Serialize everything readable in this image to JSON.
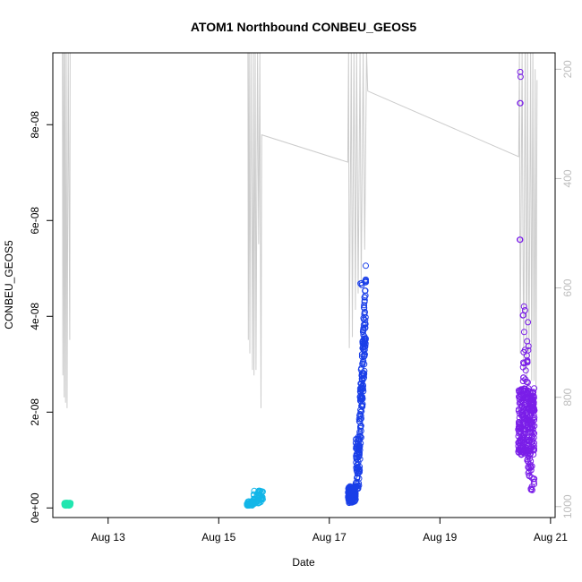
{
  "chart_data": {
    "type": "scatter",
    "title": "ATOM1 Northbound CONBEU_GEOS5",
    "xlabel": "Date",
    "ylabel": "CONBEU_GEOS5",
    "xlim": [
      "2016-08-12T00:00",
      "2016-08-21T02:00"
    ],
    "ylim": [
      -2e-09,
      9.5e-08
    ],
    "x_ticks": [
      {
        "value": "2016-08-13T00:00",
        "label": "Aug 13"
      },
      {
        "value": "2016-08-15T00:00",
        "label": "Aug 15"
      },
      {
        "value": "2016-08-17T00:00",
        "label": "Aug 17"
      },
      {
        "value": "2016-08-19T00:00",
        "label": "Aug 19"
      },
      {
        "value": "2016-08-21T00:00",
        "label": "Aug 21"
      }
    ],
    "y_ticks": [
      {
        "value": 0,
        "label": "0e+00"
      },
      {
        "value": 2e-08,
        "label": "2e-08"
      },
      {
        "value": 4e-08,
        "label": "4e-08"
      },
      {
        "value": 6e-08,
        "label": "6e-08"
      },
      {
        "value": 8e-08,
        "label": "8e-08"
      }
    ],
    "right_axis": {
      "color": "#bdbdbd",
      "reversed": true,
      "lim": [
        1020,
        170
      ],
      "ticks": [
        {
          "value": 200,
          "label": "200"
        },
        {
          "value": 400,
          "label": "400"
        },
        {
          "value": 600,
          "label": "600"
        },
        {
          "value": 800,
          "label": "800"
        },
        {
          "value": 1000,
          "label": "1000"
        }
      ]
    },
    "grid": false,
    "legend": "none",
    "series": [
      {
        "color": "#22e6b0",
        "segments": [
          {
            "start": "2016-08-12T05:00",
            "end": "2016-08-12T07:40",
            "count": 60,
            "y_min": 5e-10,
            "y_max": 1.1e-09,
            "drift": 0
          }
        ]
      },
      {
        "color": "#13b6e8",
        "segments": [
          {
            "start": "2016-08-15T12:10",
            "end": "2016-08-15T15:00",
            "count": 45,
            "y_min": 5e-10,
            "y_max": 1.4e-09,
            "drift": 0
          },
          {
            "start": "2016-08-15T15:00",
            "end": "2016-08-15T19:10",
            "count": 45,
            "y_min": 8e-10,
            "y_max": 3.6e-09,
            "drift": 0
          }
        ]
      },
      {
        "color": "#1a3fe8",
        "segments": [
          {
            "start": "2016-08-17T08:10",
            "end": "2016-08-17T11:30",
            "count": 130,
            "y_min": 1e-09,
            "y_max": 4.5e-09,
            "drift": 0
          },
          {
            "start": "2016-08-17T11:30",
            "end": "2016-08-17T12:50",
            "count": 50,
            "y_min": 4e-09,
            "y_max": 1.5e-08,
            "drift": 0
          },
          {
            "start": "2016-08-17T12:50",
            "end": "2016-08-17T15:50",
            "count": 170,
            "y_min": 1.2e-08,
            "y_max": 4.3e-08,
            "drift": 1
          },
          {
            "start": "2016-08-17T13:30",
            "end": "2016-08-17T14:10",
            "count": 3,
            "y_min": 4.6e-08,
            "y_max": 4.8e-08,
            "drift": 0
          }
        ]
      },
      {
        "color": "#7a1ee8",
        "segments": [
          {
            "start": "2016-08-20T10:00",
            "end": "2016-08-20T17:00",
            "count": 260,
            "y_min": 1.1e-08,
            "y_max": 2.5e-08,
            "drift": 0
          },
          {
            "start": "2016-08-20T12:00",
            "end": "2016-08-20T14:30",
            "count": 25,
            "y_min": 2.5e-08,
            "y_max": 4.3e-08,
            "drift": 0
          },
          {
            "start": "2016-08-20T13:40",
            "end": "2016-08-20T16:10",
            "count": 18,
            "y_min": 5e-09,
            "y_max": 1.1e-08,
            "drift": 0
          },
          {
            "start": "2016-08-20T15:00",
            "end": "2016-08-20T17:10",
            "count": 10,
            "y_min": 3.5e-09,
            "y_max": 7e-09,
            "drift": 0
          },
          {
            "start": "2016-08-20T15:40",
            "end": "2016-08-20T17:00",
            "count": 8,
            "y_min": 1.8e-08,
            "y_max": 2.4e-08,
            "drift": 0
          }
        ],
        "points": [
          {
            "x": "2016-08-20T10:50",
            "y": 9.1e-08
          },
          {
            "x": "2016-08-20T11:00",
            "y": 9e-08
          },
          {
            "x": "2016-08-20T10:45",
            "y": 8.45e-08
          },
          {
            "x": "2016-08-20T10:55",
            "y": 8.45e-08
          },
          {
            "x": "2016-08-20T10:40",
            "y": 5.6e-08
          },
          {
            "x": "2016-08-20T10:50",
            "y": 5.6e-08
          }
        ]
      }
    ],
    "altitude_trace": {
      "color": "#cccccc",
      "points": [
        {
          "x": "2016-08-12T04:10",
          "y": 170
        },
        {
          "x": "2016-08-12T04:20",
          "y": 760
        },
        {
          "x": "2016-08-12T04:40",
          "y": 170
        },
        {
          "x": "2016-08-12T04:55",
          "y": 800
        },
        {
          "x": "2016-08-12T05:10",
          "y": 170
        },
        {
          "x": "2016-08-12T05:30",
          "y": 810
        },
        {
          "x": "2016-08-12T05:50",
          "y": 170
        },
        {
          "x": "2016-08-12T06:10",
          "y": 820
        },
        {
          "x": "2016-08-12T06:40",
          "y": 170
        },
        {
          "x": "2016-08-12T07:20",
          "y": 695
        },
        {
          "x": "2016-08-12T07:30",
          "y": 170
        },
        {
          "x": "2016-08-15T12:40",
          "y": 170
        },
        {
          "x": "2016-08-15T12:50",
          "y": 695
        },
        {
          "x": "2016-08-15T13:10",
          "y": 170
        },
        {
          "x": "2016-08-15T13:30",
          "y": 720
        },
        {
          "x": "2016-08-15T14:00",
          "y": 170
        },
        {
          "x": "2016-08-15T14:40",
          "y": 750
        },
        {
          "x": "2016-08-15T15:00",
          "y": 170
        },
        {
          "x": "2016-08-15T15:20",
          "y": 760
        },
        {
          "x": "2016-08-15T15:50",
          "y": 170
        },
        {
          "x": "2016-08-15T16:10",
          "y": 750
        },
        {
          "x": "2016-08-15T16:50",
          "y": 170
        },
        {
          "x": "2016-08-15T17:20",
          "y": 520
        },
        {
          "x": "2016-08-15T17:50",
          "y": 170
        },
        {
          "x": "2016-08-15T18:20",
          "y": 820
        },
        {
          "x": "2016-08-15T18:40",
          "y": 320
        },
        {
          "x": "2016-08-17T08:00",
          "y": 370
        },
        {
          "x": "2016-08-17T08:20",
          "y": 170
        },
        {
          "x": "2016-08-17T08:40",
          "y": 710
        },
        {
          "x": "2016-08-17T09:30",
          "y": 170
        },
        {
          "x": "2016-08-17T10:00",
          "y": 690
        },
        {
          "x": "2016-08-17T10:40",
          "y": 170
        },
        {
          "x": "2016-08-17T11:20",
          "y": 640
        },
        {
          "x": "2016-08-17T11:50",
          "y": 170
        },
        {
          "x": "2016-08-17T12:30",
          "y": 610
        },
        {
          "x": "2016-08-17T13:20",
          "y": 170
        },
        {
          "x": "2016-08-17T13:50",
          "y": 590
        },
        {
          "x": "2016-08-17T14:40",
          "y": 170
        },
        {
          "x": "2016-08-17T15:20",
          "y": 530
        },
        {
          "x": "2016-08-17T16:10",
          "y": 170
        },
        {
          "x": "2016-08-17T16:40",
          "y": 240
        },
        {
          "x": "2016-08-20T10:10",
          "y": 360
        },
        {
          "x": "2016-08-20T10:30",
          "y": 170
        },
        {
          "x": "2016-08-20T10:50",
          "y": 720
        },
        {
          "x": "2016-08-20T11:40",
          "y": 170
        },
        {
          "x": "2016-08-20T12:20",
          "y": 750
        },
        {
          "x": "2016-08-20T13:00",
          "y": 170
        },
        {
          "x": "2016-08-20T13:40",
          "y": 800
        },
        {
          "x": "2016-08-20T14:00",
          "y": 170
        },
        {
          "x": "2016-08-20T14:40",
          "y": 740
        },
        {
          "x": "2016-08-20T15:20",
          "y": 170
        },
        {
          "x": "2016-08-20T15:50",
          "y": 770
        },
        {
          "x": "2016-08-20T16:20",
          "y": 170
        },
        {
          "x": "2016-08-20T16:50",
          "y": 770
        },
        {
          "x": "2016-08-20T17:20",
          "y": 200
        },
        {
          "x": "2016-08-20T17:40",
          "y": 800
        },
        {
          "x": "2016-08-20T18:10",
          "y": 220
        }
      ]
    }
  }
}
